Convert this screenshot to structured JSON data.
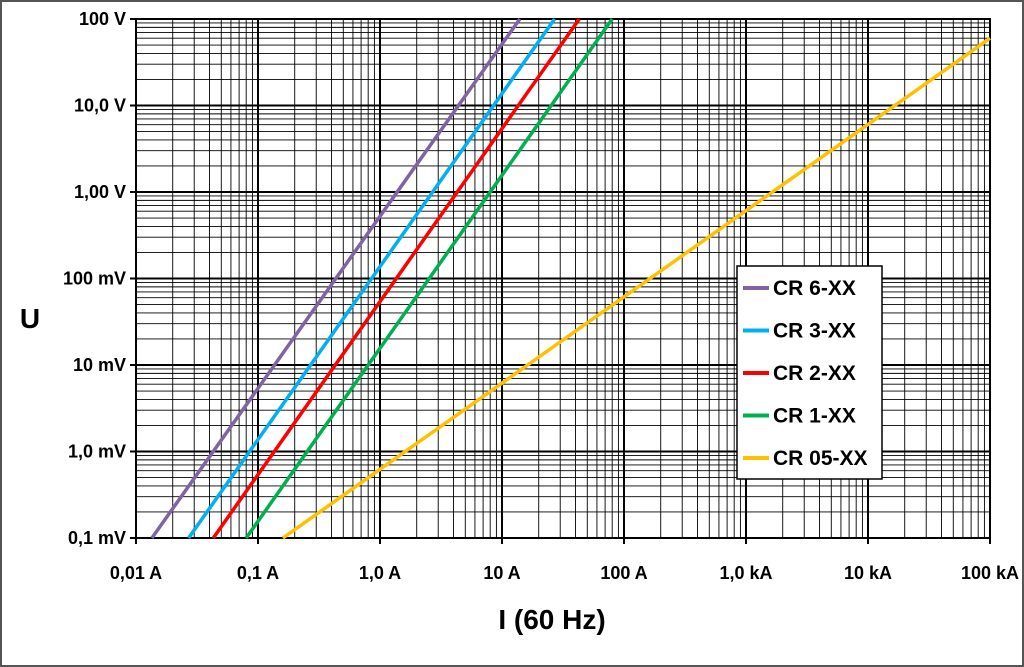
{
  "chart_data": {
    "type": "line",
    "xlabel": "I (60 Hz)",
    "ylabel": "U",
    "x_scale": "log",
    "y_scale": "log",
    "xlim": [
      0.01,
      100000
    ],
    "ylim": [
      0.0001,
      100
    ],
    "grid": true,
    "legend_position": "right",
    "x_ticks": [
      {
        "value": 0.01,
        "label": "0,01 A"
      },
      {
        "value": 0.1,
        "label": "0,1 A"
      },
      {
        "value": 1,
        "label": "1,0 A"
      },
      {
        "value": 10,
        "label": "10 A"
      },
      {
        "value": 100,
        "label": "100 A"
      },
      {
        "value": 1000,
        "label": "1,0 kA"
      },
      {
        "value": 10000,
        "label": "10 kA"
      },
      {
        "value": 100000,
        "label": "100 kA"
      }
    ],
    "y_ticks": [
      {
        "value": 0.0001,
        "label": "0,1 mV"
      },
      {
        "value": 0.001,
        "label": "1,0 mV"
      },
      {
        "value": 0.01,
        "label": "10 mV"
      },
      {
        "value": 0.1,
        "label": "100 mV"
      },
      {
        "value": 1,
        "label": "1,00 V"
      },
      {
        "value": 10,
        "label": "10,0 V"
      },
      {
        "value": 100,
        "label": "100 V"
      }
    ],
    "series": [
      {
        "name": "CR 6-XX",
        "color": "#8064a2",
        "x": [
          0.0135,
          14
        ],
        "y": [
          0.0001,
          100
        ]
      },
      {
        "name": "CR 3-XX",
        "color": "#00b0f0",
        "x": [
          0.027,
          27
        ],
        "y": [
          0.0001,
          100
        ]
      },
      {
        "name": "CR 2-XX",
        "color": "#ff0000",
        "x": [
          0.043,
          43
        ],
        "y": [
          0.0001,
          100
        ]
      },
      {
        "name": "CR 1-XX",
        "color": "#00b050",
        "x": [
          0.08,
          80
        ],
        "y": [
          0.0001,
          100
        ]
      },
      {
        "name": "CR 05-XX",
        "color": "#ffc000",
        "x": [
          0.16,
          100000
        ],
        "y": [
          0.0001,
          60
        ]
      }
    ]
  }
}
